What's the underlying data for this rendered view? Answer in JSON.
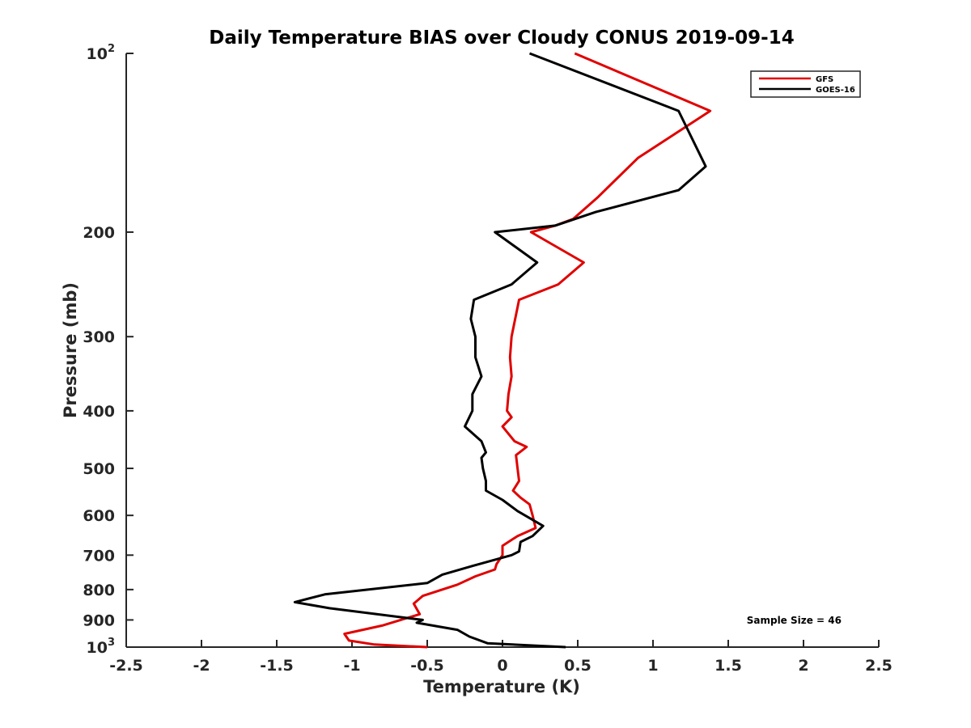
{
  "chart_data": {
    "type": "line",
    "title": "Daily Temperature BIAS over Cloudy CONUS 2019-09-14",
    "xlabel": "Temperature (K)",
    "ylabel": "Pressure (mb)",
    "xlim": [
      -2.5,
      2.5
    ],
    "ylim": [
      100,
      1000
    ],
    "y_scale": "log",
    "y_reversed": true,
    "x_ticks": [
      -2.5,
      -2,
      -1.5,
      -1,
      -0.5,
      0,
      0.5,
      1,
      1.5,
      2,
      2.5
    ],
    "x_tick_labels": [
      "-2.5",
      "-2",
      "-1.5",
      "-1",
      "-0.5",
      "0",
      "0.5",
      "1",
      "1.5",
      "2",
      "2.5"
    ],
    "y_ticks": [
      {
        "value": 100,
        "base": "10",
        "exp": "2"
      },
      {
        "value": 200,
        "label": "200"
      },
      {
        "value": 300,
        "label": "300"
      },
      {
        "value": 400,
        "label": "400"
      },
      {
        "value": 500,
        "label": "500"
      },
      {
        "value": 600,
        "label": "600"
      },
      {
        "value": 700,
        "label": "700"
      },
      {
        "value": 800,
        "label": "800"
      },
      {
        "value": 900,
        "label": "900"
      },
      {
        "value": 1000,
        "base": "10",
        "exp": "3"
      }
    ],
    "legend_position": "top-right",
    "annotation": "Sample Size = 46",
    "series": [
      {
        "name": "GFS",
        "color": "#e00000",
        "points": [
          [
            0.48,
            100
          ],
          [
            1.38,
            125
          ],
          [
            0.9,
            150
          ],
          [
            0.63,
            175
          ],
          [
            0.47,
            190
          ],
          [
            0.35,
            195
          ],
          [
            0.19,
            200
          ],
          [
            0.54,
            225
          ],
          [
            0.37,
            245
          ],
          [
            0.11,
            260
          ],
          [
            0.06,
            300
          ],
          [
            0.05,
            325
          ],
          [
            0.06,
            350
          ],
          [
            0.04,
            375
          ],
          [
            0.03,
            400
          ],
          [
            0.06,
            410
          ],
          [
            0.0,
            425
          ],
          [
            0.08,
            450
          ],
          [
            0.16,
            460
          ],
          [
            0.09,
            475
          ],
          [
            0.1,
            500
          ],
          [
            0.11,
            525
          ],
          [
            0.07,
            545
          ],
          [
            0.12,
            560
          ],
          [
            0.18,
            575
          ],
          [
            0.2,
            600
          ],
          [
            0.22,
            630
          ],
          [
            0.1,
            650
          ],
          [
            0.0,
            675
          ],
          [
            0.0,
            700
          ],
          [
            -0.04,
            725
          ],
          [
            -0.05,
            740
          ],
          [
            -0.18,
            760
          ],
          [
            -0.3,
            785
          ],
          [
            -0.53,
            820
          ],
          [
            -0.59,
            845
          ],
          [
            -0.55,
            880
          ],
          [
            -0.8,
            920
          ],
          [
            -1.05,
            950
          ],
          [
            -1.02,
            975
          ],
          [
            -0.85,
            990
          ],
          [
            -0.5,
            1000
          ]
        ]
      },
      {
        "name": "GOES-16",
        "color": "#000000",
        "points": [
          [
            0.18,
            100
          ],
          [
            1.17,
            125
          ],
          [
            1.35,
            155
          ],
          [
            1.17,
            170
          ],
          [
            0.62,
            185
          ],
          [
            0.35,
            195
          ],
          [
            -0.05,
            200
          ],
          [
            0.23,
            225
          ],
          [
            0.06,
            245
          ],
          [
            -0.19,
            260
          ],
          [
            -0.21,
            280
          ],
          [
            -0.18,
            300
          ],
          [
            -0.18,
            325
          ],
          [
            -0.14,
            350
          ],
          [
            -0.2,
            375
          ],
          [
            -0.2,
            400
          ],
          [
            -0.25,
            425
          ],
          [
            -0.14,
            450
          ],
          [
            -0.11,
            470
          ],
          [
            -0.14,
            480
          ],
          [
            -0.13,
            500
          ],
          [
            -0.11,
            525
          ],
          [
            -0.11,
            545
          ],
          [
            0.0,
            565
          ],
          [
            0.1,
            590
          ],
          [
            0.27,
            625
          ],
          [
            0.2,
            650
          ],
          [
            0.12,
            665
          ],
          [
            0.11,
            690
          ],
          [
            0.06,
            700
          ],
          [
            -0.2,
            730
          ],
          [
            -0.4,
            755
          ],
          [
            -0.5,
            780
          ],
          [
            -1.18,
            815
          ],
          [
            -1.38,
            840
          ],
          [
            -1.15,
            860
          ],
          [
            -0.53,
            900
          ],
          [
            -0.57,
            910
          ],
          [
            -0.3,
            935
          ],
          [
            -0.22,
            960
          ],
          [
            -0.1,
            985
          ],
          [
            0.42,
            1000
          ]
        ]
      }
    ]
  }
}
